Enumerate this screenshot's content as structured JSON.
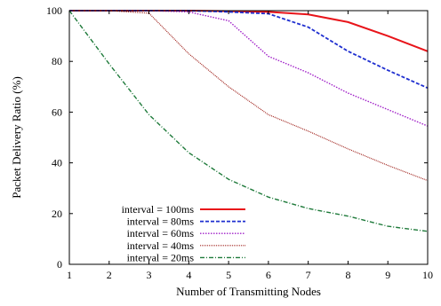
{
  "chart_data": {
    "type": "line",
    "xlabel": "Number of Transmitting Nodes",
    "ylabel": "Packet Delivery Ratio (%)",
    "x": [
      1,
      2,
      3,
      4,
      5,
      6,
      7,
      8,
      9,
      10
    ],
    "xlim": [
      1,
      10
    ],
    "ylim": [
      0,
      100
    ],
    "xticks": [
      "1",
      "2",
      "3",
      "4",
      "5",
      "6",
      "7",
      "8",
      "9",
      "10"
    ],
    "yticks": [
      "0",
      "20",
      "40",
      "60",
      "80",
      "100"
    ],
    "grid": false,
    "legend_position": "bottom-left",
    "series": [
      {
        "name": "interval = 100ms",
        "color": "#e8141a",
        "dash": "solid",
        "values": [
          100,
          100,
          100,
          100,
          99.8,
          99.5,
          98.5,
          95.5,
          90,
          84
        ]
      },
      {
        "name": "interval = 80ms",
        "color": "#1f2fd0",
        "dash": "dashed",
        "values": [
          100,
          100,
          100,
          100,
          99.5,
          98.8,
          93.5,
          84,
          76.5,
          69.5
        ]
      },
      {
        "name": "interval = 60ms",
        "color": "#a020c8",
        "dash": "dotted",
        "values": [
          100,
          100,
          100,
          99.5,
          96,
          82,
          75.5,
          67.5,
          61,
          54.5
        ]
      },
      {
        "name": "interval = 40ms",
        "color": "#a0241e",
        "dash": "finedotted",
        "values": [
          100,
          100,
          99,
          83,
          70,
          59,
          52.5,
          45.5,
          39,
          33
        ]
      },
      {
        "name": "interval = 20ms",
        "color": "#1e7a3a",
        "dash": "dashdot",
        "values": [
          100,
          79,
          59,
          44,
          33.5,
          26.5,
          22,
          19,
          15,
          13
        ]
      }
    ]
  }
}
